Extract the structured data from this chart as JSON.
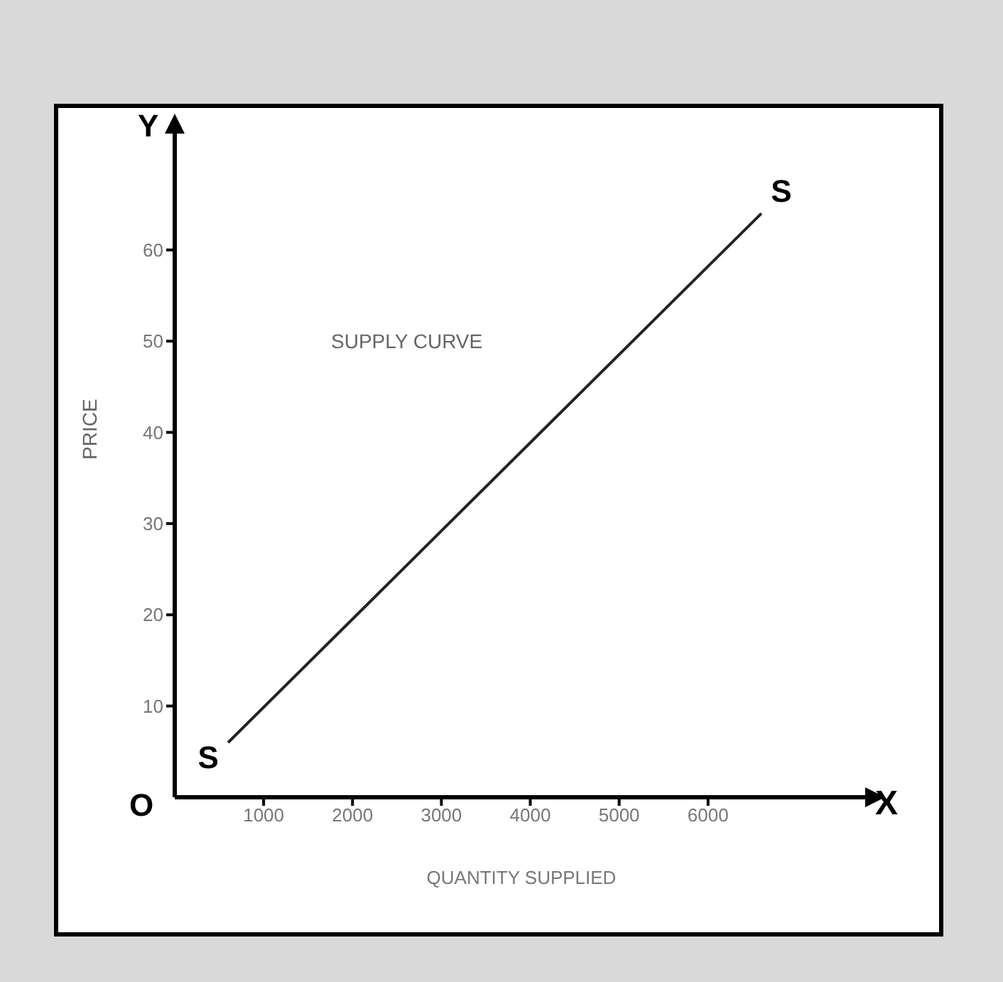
{
  "chart_data": {
    "type": "line",
    "xlabel": "QUANTITY SUPPLIED",
    "ylabel": "PRICE",
    "x": [
      600,
      6600
    ],
    "series": [
      {
        "color": "#222222",
        "values": [
          6,
          64
        ]
      }
    ],
    "xlim": [
      0,
      7800
    ],
    "xticks": [
      1000,
      2000,
      3000,
      4000,
      5000,
      6000
    ],
    "ylim": [
      0,
      74
    ],
    "yticks": [
      10,
      20,
      30,
      40,
      50,
      60
    ],
    "grid": false,
    "legend": false,
    "annotations": [
      {
        "text": "S",
        "x": 600,
        "y": 6
      },
      {
        "text": "S",
        "x": 6600,
        "y": 64
      },
      "SUPPLY CURVE",
      "O",
      "Y",
      "X"
    ]
  }
}
